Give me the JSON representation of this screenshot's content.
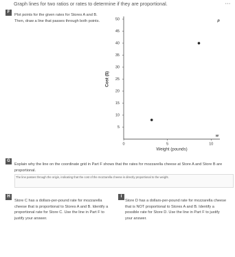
{
  "header": {
    "title": "Graph lines for two ratios or rates to determine if they are proportional."
  },
  "sections": [
    {
      "badge": "F",
      "text": "Plot points for the given rates for Stores A and B. Then, draw a line that passes through both points."
    },
    {
      "badge": "G",
      "text": "Explain why the line on the coordinate grid in Part F shows that the rates for mozzarella cheese at Store A and Store B are proportional.",
      "answer": "The line passes through the origin, indicating that the cost of the mozzarella cheese is directly proportional to the weight."
    },
    {
      "badge": "H",
      "text": "Store C has a dollars-per-pound rate for mozzarella cheese that is proportional to Stores A and B. Identify a proportional rate for Store C. Use the line in Part F to justify your answer."
    },
    {
      "badge": "I",
      "text": "Store D has a dollars-per-pound rate for mozzarella cheese that is NOT proportional to Stores A and B. Identify a possible rate for Store D. Use the line in Part F to justify your answer."
    }
  ],
  "graph": {
    "xlabel": "Weight (pounds)",
    "ylabel": "Cost ($)",
    "x_var": "w",
    "y_var": "p",
    "xlim": [
      0,
      11
    ],
    "ylim": [
      0,
      50
    ],
    "xticks": [
      0,
      5,
      10
    ],
    "yticks": [
      5,
      10,
      15,
      20,
      25,
      30,
      35,
      40,
      45,
      50
    ],
    "points": [
      {
        "x": 3.2,
        "y": 8
      },
      {
        "x": 8.6,
        "y": 40
      }
    ]
  }
}
